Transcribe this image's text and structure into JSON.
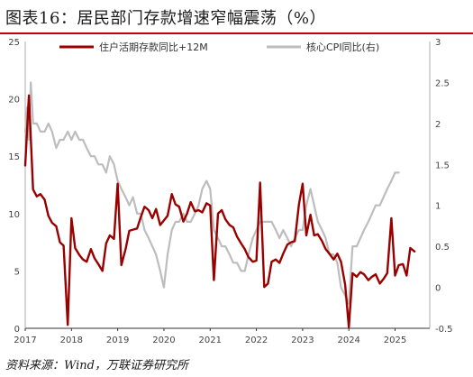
{
  "header": {
    "title": "图表16：居民部门存款增速窄幅震荡（%）"
  },
  "footer": {
    "source": "资料来源：Wind，万联证券研究所"
  },
  "chart_data": {
    "type": "line",
    "xlim": [
      2017.0,
      2025.75
    ],
    "x_ticks": [
      "2017",
      "2018",
      "2019",
      "2020",
      "2021",
      "2022",
      "2023",
      "2024",
      "2025"
    ],
    "y_left": {
      "lim": [
        0,
        25
      ],
      "ticks": [
        0,
        5,
        10,
        15,
        20,
        25
      ]
    },
    "y_right": {
      "lim": [
        -0.5,
        3
      ],
      "ticks": [
        -0.5,
        0,
        0.5,
        1,
        1.5,
        2,
        2.5,
        3
      ]
    },
    "grid": false,
    "legend": "top-center",
    "series": [
      {
        "name": "住户活期存款同比+12M",
        "axis": "left",
        "color": "#990000",
        "points": [
          [
            2017.0,
            14.2
          ],
          [
            2017.08,
            20.3
          ],
          [
            2017.17,
            12.1
          ],
          [
            2017.25,
            11.5
          ],
          [
            2017.33,
            11.7
          ],
          [
            2017.42,
            11.2
          ],
          [
            2017.5,
            9.8
          ],
          [
            2017.58,
            9.2
          ],
          [
            2017.67,
            8.9
          ],
          [
            2017.75,
            7.5
          ],
          [
            2017.83,
            7.2
          ],
          [
            2017.92,
            0.3
          ],
          [
            2018.0,
            9.6
          ],
          [
            2018.08,
            7.0
          ],
          [
            2018.17,
            6.4
          ],
          [
            2018.25,
            6.0
          ],
          [
            2018.33,
            5.8
          ],
          [
            2018.42,
            6.9
          ],
          [
            2018.5,
            6.1
          ],
          [
            2018.58,
            5.6
          ],
          [
            2018.67,
            5.0
          ],
          [
            2018.75,
            7.4
          ],
          [
            2018.83,
            8.1
          ],
          [
            2018.92,
            7.8
          ],
          [
            2019.0,
            12.6
          ],
          [
            2019.08,
            5.5
          ],
          [
            2019.17,
            6.9
          ],
          [
            2019.25,
            8.5
          ],
          [
            2019.33,
            8.6
          ],
          [
            2019.42,
            8.7
          ],
          [
            2019.5,
            9.7
          ],
          [
            2019.58,
            10.6
          ],
          [
            2019.67,
            10.3
          ],
          [
            2019.75,
            9.6
          ],
          [
            2019.83,
            10.4
          ],
          [
            2019.92,
            9.0
          ],
          [
            2020.0,
            9.4
          ],
          [
            2020.08,
            9.8
          ],
          [
            2020.17,
            11.7
          ],
          [
            2020.25,
            10.8
          ],
          [
            2020.33,
            10.6
          ],
          [
            2020.42,
            9.3
          ],
          [
            2020.5,
            10.0
          ],
          [
            2020.58,
            11.0
          ],
          [
            2020.67,
            10.2
          ],
          [
            2020.75,
            10.3
          ],
          [
            2020.83,
            10.1
          ],
          [
            2020.92,
            10.9
          ],
          [
            2021.0,
            10.7
          ],
          [
            2021.08,
            4.2
          ],
          [
            2021.17,
            10.0
          ],
          [
            2021.25,
            10.3
          ],
          [
            2021.33,
            9.5
          ],
          [
            2021.42,
            9.0
          ],
          [
            2021.5,
            8.8
          ],
          [
            2021.58,
            8.0
          ],
          [
            2021.67,
            7.4
          ],
          [
            2021.75,
            6.9
          ],
          [
            2021.83,
            6.2
          ],
          [
            2021.92,
            5.8
          ],
          [
            2022.0,
            5.9
          ],
          [
            2022.08,
            12.7
          ],
          [
            2022.17,
            3.6
          ],
          [
            2022.25,
            3.9
          ],
          [
            2022.33,
            5.8
          ],
          [
            2022.42,
            6.0
          ],
          [
            2022.5,
            5.7
          ],
          [
            2022.58,
            6.5
          ],
          [
            2022.67,
            7.3
          ],
          [
            2022.75,
            7.5
          ],
          [
            2022.83,
            7.6
          ],
          [
            2022.92,
            10.8
          ],
          [
            2023.0,
            12.6
          ],
          [
            2023.08,
            8.1
          ],
          [
            2023.17,
            9.9
          ],
          [
            2023.25,
            8.1
          ],
          [
            2023.33,
            8.2
          ],
          [
            2023.42,
            7.6
          ],
          [
            2023.5,
            6.9
          ],
          [
            2023.58,
            6.5
          ],
          [
            2023.67,
            6.0
          ],
          [
            2023.75,
            6.5
          ],
          [
            2023.83,
            5.8
          ],
          [
            2023.92,
            3.8
          ],
          [
            2024.0,
            0.1
          ],
          [
            2024.08,
            4.8
          ],
          [
            2024.17,
            4.5
          ],
          [
            2024.25,
            4.9
          ],
          [
            2024.33,
            4.7
          ],
          [
            2024.42,
            4.2
          ],
          [
            2024.5,
            4.5
          ],
          [
            2024.58,
            4.7
          ],
          [
            2024.67,
            3.9
          ],
          [
            2024.75,
            4.3
          ],
          [
            2024.83,
            4.8
          ],
          [
            2024.92,
            9.6
          ],
          [
            2025.0,
            4.6
          ],
          [
            2025.08,
            5.5
          ],
          [
            2025.17,
            5.6
          ],
          [
            2025.25,
            4.6
          ],
          [
            2025.33,
            7.0
          ],
          [
            2025.42,
            6.7
          ]
        ]
      },
      {
        "name": "核心CPI同比(右)",
        "axis": "right",
        "color": "#bdbdbd",
        "points": [
          [
            2017.0,
            1.9
          ],
          [
            2017.04,
            2.2
          ],
          [
            2017.08,
            1.8
          ],
          [
            2017.12,
            2.5
          ],
          [
            2017.17,
            2.0
          ],
          [
            2017.25,
            2.0
          ],
          [
            2017.33,
            1.9
          ],
          [
            2017.42,
            1.9
          ],
          [
            2017.5,
            2.0
          ],
          [
            2017.58,
            1.9
          ],
          [
            2017.67,
            1.7
          ],
          [
            2017.75,
            1.8
          ],
          [
            2017.83,
            1.8
          ],
          [
            2017.92,
            1.9
          ],
          [
            2018.0,
            1.8
          ],
          [
            2018.08,
            1.9
          ],
          [
            2018.17,
            1.8
          ],
          [
            2018.25,
            1.8
          ],
          [
            2018.33,
            1.7
          ],
          [
            2018.42,
            1.6
          ],
          [
            2018.5,
            1.6
          ],
          [
            2018.58,
            1.5
          ],
          [
            2018.67,
            1.5
          ],
          [
            2018.75,
            1.4
          ],
          [
            2018.83,
            1.6
          ],
          [
            2018.92,
            1.5
          ],
          [
            2019.0,
            1.3
          ],
          [
            2019.08,
            1.2
          ],
          [
            2019.17,
            1.1
          ],
          [
            2019.25,
            1.0
          ],
          [
            2019.33,
            1.1
          ],
          [
            2019.42,
            0.9
          ],
          [
            2019.5,
            0.9
          ],
          [
            2019.58,
            0.7
          ],
          [
            2019.67,
            0.6
          ],
          [
            2019.75,
            0.5
          ],
          [
            2019.83,
            0.4
          ],
          [
            2019.92,
            0.2
          ],
          [
            2020.0,
            0.0
          ],
          [
            2020.08,
            0.4
          ],
          [
            2020.17,
            0.7
          ],
          [
            2020.25,
            0.8
          ],
          [
            2020.33,
            0.8
          ],
          [
            2020.42,
            0.9
          ],
          [
            2020.5,
            0.8
          ],
          [
            2020.58,
            0.8
          ],
          [
            2020.67,
            0.9
          ],
          [
            2020.75,
            1.0
          ],
          [
            2020.83,
            1.2
          ],
          [
            2020.92,
            1.3
          ],
          [
            2021.0,
            1.2
          ],
          [
            2021.08,
            0.7
          ],
          [
            2021.17,
            0.6
          ],
          [
            2021.25,
            0.5
          ],
          [
            2021.33,
            0.5
          ],
          [
            2021.42,
            0.4
          ],
          [
            2021.5,
            0.3
          ],
          [
            2021.58,
            0.3
          ],
          [
            2021.67,
            0.2
          ],
          [
            2021.75,
            0.2
          ],
          [
            2021.83,
            0.4
          ],
          [
            2021.92,
            0.6
          ],
          [
            2022.0,
            0.7
          ],
          [
            2022.08,
            0.8
          ],
          [
            2022.17,
            0.8
          ],
          [
            2022.25,
            0.8
          ],
          [
            2022.33,
            0.8
          ],
          [
            2022.42,
            0.7
          ],
          [
            2022.5,
            0.6
          ],
          [
            2022.58,
            0.7
          ],
          [
            2022.67,
            0.6
          ],
          [
            2022.75,
            0.5
          ],
          [
            2022.83,
            0.6
          ],
          [
            2022.92,
            0.7
          ],
          [
            2023.0,
            0.7
          ],
          [
            2023.08,
            1.0
          ],
          [
            2023.17,
            1.2
          ],
          [
            2023.25,
            1.0
          ],
          [
            2023.33,
            0.8
          ],
          [
            2023.42,
            0.7
          ],
          [
            2023.5,
            0.6
          ],
          [
            2023.58,
            0.4
          ],
          [
            2023.67,
            0.4
          ],
          [
            2023.75,
            0.3
          ],
          [
            2023.83,
            0.0
          ],
          [
            2023.92,
            -0.1
          ],
          [
            2024.0,
            -0.2
          ],
          [
            2024.08,
            0.5
          ],
          [
            2024.17,
            0.5
          ],
          [
            2024.25,
            0.6
          ],
          [
            2024.33,
            0.7
          ],
          [
            2024.42,
            0.8
          ],
          [
            2024.5,
            0.9
          ],
          [
            2024.58,
            1.0
          ],
          [
            2024.67,
            1.0
          ],
          [
            2024.75,
            1.1
          ],
          [
            2024.83,
            1.2
          ],
          [
            2024.92,
            1.3
          ],
          [
            2025.0,
            1.4
          ],
          [
            2025.08,
            1.4
          ]
        ]
      }
    ]
  }
}
